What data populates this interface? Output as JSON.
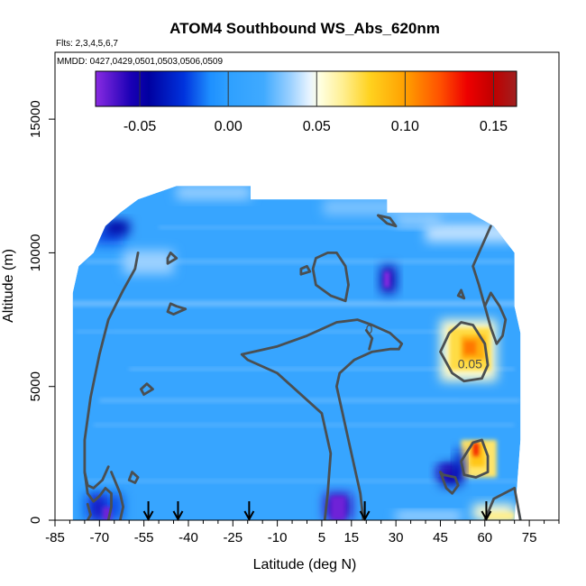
{
  "chart_data": {
    "type": "heatmap",
    "title": "ATOM4 Southbound WS_Abs_620nm",
    "flights_note": "Flts: 2,3,4,5,6,7",
    "dates_note": "MMDD: 0427,0429,0501,0503,0506,0509",
    "xlabel": "Latitude (deg N)",
    "ylabel": "Altitude (m)",
    "xlim": [
      -85,
      85
    ],
    "ylim": [
      0,
      17500
    ],
    "x_tick_labels": [
      "-85",
      "-70",
      "-55",
      "-40",
      "-25",
      "-10",
      "5",
      "15",
      "30",
      "45",
      "60",
      "75"
    ],
    "x_tick_values": [
      -85,
      -70,
      -55,
      -40,
      -25,
      -10,
      5,
      15,
      30,
      45,
      60,
      75
    ],
    "x_minor_ticks": [
      -80,
      -75,
      -65,
      -60,
      -50,
      -45,
      -35,
      -30,
      -20,
      -15,
      -5,
      0,
      10,
      20,
      25,
      35,
      40,
      50,
      55,
      65,
      70,
      80,
      85
    ],
    "y_tick_labels": [
      "0",
      "5000",
      "10000",
      "15000"
    ],
    "y_tick_values": [
      0,
      5000,
      10000,
      15000
    ],
    "colorbar": {
      "range": [
        -0.075,
        0.163
      ],
      "tick_labels": [
        "-0.05",
        "0.00",
        "0.05",
        "0.10",
        "0.15"
      ],
      "tick_values": [
        -0.05,
        0.0,
        0.05,
        0.1,
        0.15
      ],
      "line_values": [
        -0.05,
        0.0,
        0.05,
        0.1,
        0.15
      ],
      "stops": [
        {
          "v": -0.075,
          "c": "#8a2be2"
        },
        {
          "v": -0.055,
          "c": "#1a00b5"
        },
        {
          "v": -0.045,
          "c": "#0000a0"
        },
        {
          "v": -0.025,
          "c": "#0033dd"
        },
        {
          "v": -0.01,
          "c": "#1e90ff"
        },
        {
          "v": 0.0,
          "c": "#2ea0ff"
        },
        {
          "v": 0.02,
          "c": "#40aaff"
        },
        {
          "v": 0.035,
          "c": "#9ad0ff"
        },
        {
          "v": 0.046,
          "c": "#e8f4ff"
        },
        {
          "v": 0.052,
          "c": "#ffffe0"
        },
        {
          "v": 0.065,
          "c": "#ffef90"
        },
        {
          "v": 0.08,
          "c": "#ffd21f"
        },
        {
          "v": 0.1,
          "c": "#ffa000"
        },
        {
          "v": 0.12,
          "c": "#ff5000"
        },
        {
          "v": 0.135,
          "c": "#ee0000"
        },
        {
          "v": 0.15,
          "c": "#c00000"
        },
        {
          "v": 0.163,
          "c": "#a02020"
        }
      ]
    },
    "background_value": 0.01,
    "data_outline": [
      [
        -79,
        0
      ],
      [
        -79,
        8500
      ],
      [
        -77,
        9500
      ],
      [
        -72,
        10000
      ],
      [
        -68,
        11000
      ],
      [
        -63,
        11500
      ],
      [
        -57,
        12000
      ],
      [
        -44,
        12500
      ],
      [
        -19,
        12500
      ],
      [
        -19,
        12000
      ],
      [
        27,
        12000
      ],
      [
        27,
        11500
      ],
      [
        55,
        11500
      ],
      [
        63,
        11000
      ],
      [
        70,
        10000
      ],
      [
        70,
        8000
      ],
      [
        72,
        7000
      ],
      [
        72,
        3000
      ],
      [
        70,
        0
      ]
    ],
    "patches": [
      {
        "lat": [
          5.5,
          62
        ],
        "alt": [
          11400,
          12000
        ],
        "value": 0.03
      },
      {
        "lat": [
          40,
          70
        ],
        "alt": [
          10400,
          11100
        ],
        "value": 0.04
      },
      {
        "lat": [
          -62,
          -45
        ],
        "alt": [
          9200,
          10100
        ],
        "value": 0.035
      },
      {
        "lat": [
          -72,
          -62
        ],
        "alt": [
          10300,
          11000
        ],
        "value": -0.02
      },
      {
        "lat": [
          -68,
          -60
        ],
        "alt": [
          10700,
          11200
        ],
        "value": -0.045
      },
      {
        "lat": [
          25,
          30
        ],
        "alt": [
          8500,
          9500
        ],
        "value": -0.05
      },
      {
        "lat": [
          26,
          28
        ],
        "alt": [
          8700,
          9300
        ],
        "value": -0.075
      },
      {
        "lat": [
          45,
          64
        ],
        "alt": [
          5200,
          7500
        ],
        "value": 0.055
      },
      {
        "lat": [
          48,
          62
        ],
        "alt": [
          5600,
          7200
        ],
        "value": 0.075
      },
      {
        "lat": [
          52,
          60
        ],
        "alt": [
          6000,
          6900
        ],
        "value": 0.095
      },
      {
        "lat": [
          53,
          57
        ],
        "alt": [
          6200,
          6700
        ],
        "value": 0.11
      },
      {
        "lat": [
          52,
          64
        ],
        "alt": [
          1600,
          3000
        ],
        "value": 0.07
      },
      {
        "lat": [
          55,
          60
        ],
        "alt": [
          2000,
          2900
        ],
        "value": 0.085
      },
      {
        "lat": [
          56,
          58
        ],
        "alt": [
          2400,
          2900
        ],
        "value": 0.13
      },
      {
        "lat": [
          45,
          52
        ],
        "alt": [
          1300,
          2100
        ],
        "value": -0.045
      },
      {
        "lat": [
          44,
          50
        ],
        "alt": [
          1600,
          2000
        ],
        "value": -0.06
      },
      {
        "lat": [
          50,
          53
        ],
        "alt": [
          1600,
          2600
        ],
        "value": -0.035
      },
      {
        "lat": [
          6,
          15
        ],
        "alt": [
          0,
          1000
        ],
        "value": -0.06
      },
      {
        "lat": [
          8,
          13
        ],
        "alt": [
          0,
          900
        ],
        "value": -0.07
      },
      {
        "lat": [
          -75,
          -62
        ],
        "alt": [
          0,
          1000
        ],
        "value": -0.02
      },
      {
        "lat": [
          -72,
          -69
        ],
        "alt": [
          0,
          900
        ],
        "value": -0.055
      },
      {
        "lat": [
          -69,
          -66
        ],
        "alt": [
          0,
          500
        ],
        "value": -0.07
      },
      {
        "lat": [
          56,
          70
        ],
        "alt": [
          0,
          600
        ],
        "value": 0.055
      },
      {
        "lat": [
          60,
          70
        ],
        "alt": [
          0,
          300
        ],
        "value": 0.065
      },
      {
        "lat": [
          30,
          52
        ],
        "alt": [
          0,
          300
        ],
        "value": 0.04
      },
      {
        "lat": [
          -44,
          -19
        ],
        "alt": [
          12000,
          12500
        ],
        "value": 0.035
      },
      {
        "lat": [
          30,
          45
        ],
        "alt": [
          11000,
          11400
        ],
        "value": 0.035
      }
    ],
    "streaks": [
      {
        "lat": [
          -80,
          72
        ],
        "alt": [
          8000,
          8200
        ],
        "value": 0.035
      },
      {
        "lat": [
          -75,
          70
        ],
        "alt": [
          9600,
          9750
        ],
        "value": 0.03
      },
      {
        "lat": [
          -70,
          72
        ],
        "alt": [
          4400,
          4550
        ],
        "value": 0.03
      },
      {
        "lat": [
          -72,
          70
        ],
        "alt": [
          3500,
          3620
        ],
        "value": 0.028
      },
      {
        "lat": [
          -75,
          72
        ],
        "alt": [
          1400,
          1520
        ],
        "value": 0.028
      },
      {
        "lat": [
          -60,
          70
        ],
        "alt": [
          5600,
          5700
        ],
        "value": 0.032
      },
      {
        "lat": [
          -50,
          60
        ],
        "alt": [
          10900,
          11000
        ],
        "value": 0.03
      },
      {
        "lat": [
          -78,
          60
        ],
        "alt": [
          7000,
          7100
        ],
        "value": 0.03
      }
    ],
    "contours": [
      {
        "points": [
          [
            -57,
            10000
          ],
          [
            -58,
            9400
          ],
          [
            -62,
            8600
          ],
          [
            -67,
            7500
          ],
          [
            -70,
            6200
          ],
          [
            -73,
            4600
          ],
          [
            -75,
            3000
          ],
          [
            -75,
            1800
          ],
          [
            -74,
            1000
          ],
          [
            -72,
            700
          ],
          [
            -70,
            900
          ],
          [
            -68,
            1200
          ],
          [
            -66,
            1000
          ],
          [
            -66,
            500
          ],
          [
            -67,
            0
          ]
        ]
      },
      {
        "points": [
          [
            -67,
            2000
          ],
          [
            -69,
            1500
          ],
          [
            -72,
            1200
          ],
          [
            -74,
            1300
          ],
          [
            -75,
            1800
          ]
        ]
      },
      {
        "points": [
          [
            -66,
            1800
          ],
          [
            -63,
            1000
          ],
          [
            -62,
            500
          ],
          [
            -63,
            0
          ]
        ]
      },
      {
        "points": [
          [
            -59,
            1800
          ],
          [
            -57,
            1600
          ],
          [
            -58,
            1400
          ],
          [
            -60,
            1500
          ],
          [
            -59,
            1800
          ]
        ]
      },
      {
        "points": [
          [
            -41,
            7900
          ],
          [
            -45,
            7700
          ],
          [
            -47,
            7800
          ],
          [
            -46,
            8100
          ],
          [
            -44,
            8000
          ],
          [
            -41,
            7900
          ]
        ]
      },
      {
        "points": [
          [
            -47,
            9800
          ],
          [
            -46,
            10000
          ],
          [
            -44,
            9800
          ],
          [
            -47,
            9600
          ],
          [
            -47,
            9800
          ]
        ]
      },
      {
        "points": [
          [
            -56,
            4900
          ],
          [
            -54,
            5100
          ],
          [
            -52,
            4900
          ],
          [
            -55,
            4700
          ],
          [
            -56,
            4900
          ]
        ]
      },
      {
        "points": [
          [
            -74,
            600
          ],
          [
            -73,
            200
          ],
          [
            -74,
            0
          ]
        ]
      },
      {
        "points": [
          [
            6,
            0
          ],
          [
            7,
            1000
          ],
          [
            8,
            2500
          ],
          [
            5,
            4000
          ],
          [
            -10,
            5500
          ],
          [
            -20,
            6000
          ],
          [
            -22,
            6200
          ],
          [
            -10,
            6500
          ],
          [
            0,
            6900
          ],
          [
            10,
            7400
          ],
          [
            17,
            7500
          ],
          [
            22,
            7300
          ],
          [
            28,
            7000
          ],
          [
            32,
            6600
          ],
          [
            31,
            6400
          ]
        ]
      },
      {
        "points": [
          [
            20,
            7100
          ],
          [
            22,
            6800
          ],
          [
            21,
            6400
          ]
        ]
      },
      {
        "points": [
          [
            19,
            0
          ],
          [
            18,
            1000
          ],
          [
            16,
            2000
          ],
          [
            14,
            3000
          ],
          [
            12,
            4000
          ],
          [
            10,
            5000
          ],
          [
            11,
            5500
          ],
          [
            16,
            6000
          ],
          [
            22,
            6300
          ],
          [
            28,
            6400
          ],
          [
            31,
            6400
          ]
        ]
      },
      {
        "points": [
          [
            7,
            10000
          ],
          [
            3,
            9800
          ],
          [
            2,
            9400
          ],
          [
            3,
            8800
          ],
          [
            8,
            8400
          ],
          [
            13,
            8200
          ],
          [
            14,
            8800
          ],
          [
            13,
            9500
          ],
          [
            10,
            10000
          ],
          [
            7,
            10000
          ]
        ]
      },
      {
        "points": [
          [
            -2,
            9200
          ],
          [
            1,
            9300
          ],
          [
            0,
            9500
          ],
          [
            -2,
            9400
          ],
          [
            -2,
            9200
          ]
        ]
      },
      {
        "points": [
          [
            24,
            11400
          ],
          [
            27,
            11100
          ],
          [
            30,
            11000
          ],
          [
            28,
            11300
          ],
          [
            24,
            11400
          ]
        ]
      },
      {
        "points": [
          [
            45,
            6300
          ],
          [
            48,
            7000
          ],
          [
            52,
            7400
          ],
          [
            56,
            7300
          ],
          [
            60,
            6600
          ],
          [
            61,
            5800
          ],
          [
            59,
            5300
          ],
          [
            53,
            5200
          ],
          [
            49,
            5500
          ],
          [
            45,
            6300
          ]
        ]
      },
      {
        "points": [
          [
            60,
            8000
          ],
          [
            62,
            7200
          ],
          [
            64,
            6600
          ],
          [
            66,
            6900
          ],
          [
            67,
            7500
          ],
          [
            65,
            8000
          ],
          [
            62,
            8500
          ],
          [
            60,
            8000
          ]
        ]
      },
      {
        "points": [
          [
            59,
            3000
          ],
          [
            56,
            2900
          ],
          [
            52,
            2200
          ],
          [
            53,
            1700
          ],
          [
            57,
            1600
          ],
          [
            61,
            1800
          ],
          [
            61,
            2400
          ],
          [
            59,
            3000
          ]
        ]
      },
      {
        "points": [
          [
            45,
            1800
          ],
          [
            47,
            1200
          ],
          [
            49,
            1000
          ],
          [
            51,
            1300
          ],
          [
            50,
            1600
          ],
          [
            46,
            1700
          ],
          [
            45,
            1800
          ]
        ]
      },
      {
        "points": [
          [
            60,
            0
          ],
          [
            63,
            800
          ],
          [
            70,
            1200
          ],
          [
            72,
            0
          ]
        ]
      },
      {
        "points": [
          [
            62,
            11000
          ],
          [
            58,
            10000
          ],
          [
            56,
            9500
          ],
          [
            58,
            8800
          ],
          [
            60,
            8000
          ]
        ]
      },
      {
        "points": [
          [
            51,
            8400
          ],
          [
            52,
            8600
          ],
          [
            53,
            8300
          ],
          [
            51,
            8400
          ]
        ]
      }
    ],
    "contour_labels": [
      {
        "text": "0",
        "lat": 21,
        "alt": 7100
      },
      {
        "text": "0.05",
        "lat": 55,
        "alt": 5800
      }
    ],
    "flight_markers_lat": [
      -53.5,
      -43.5,
      -19.5,
      19.5,
      60.5
    ]
  }
}
